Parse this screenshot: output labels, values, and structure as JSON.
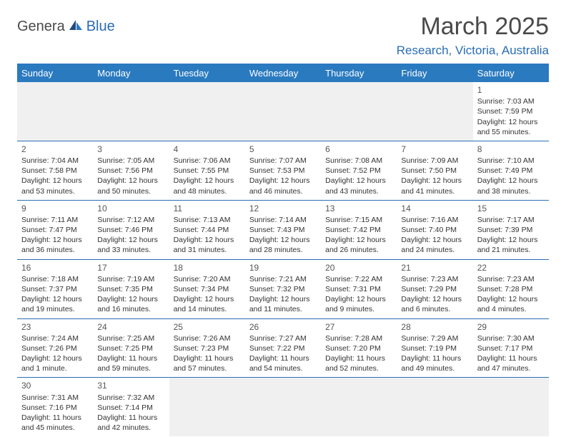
{
  "logo": {
    "text1": "Genera",
    "text2": "Blue"
  },
  "title": "March 2025",
  "location": "Research, Victoria, Australia",
  "colors": {
    "header_bg": "#2a7ac0",
    "header_text": "#ffffff",
    "accent": "#2a6db5",
    "row_border": "#2a6db5",
    "blank_bg": "#f0f0f0",
    "body_text": "#333333",
    "title_text": "#4a4a4a"
  },
  "day_headers": [
    "Sunday",
    "Monday",
    "Tuesday",
    "Wednesday",
    "Thursday",
    "Friday",
    "Saturday"
  ],
  "weeks": [
    [
      {
        "empty": true
      },
      {
        "empty": true
      },
      {
        "empty": true
      },
      {
        "empty": true
      },
      {
        "empty": true
      },
      {
        "empty": true
      },
      {
        "day": "1",
        "sunrise": "Sunrise: 7:03 AM",
        "sunset": "Sunset: 7:59 PM",
        "daylight": "Daylight: 12 hours and 55 minutes."
      }
    ],
    [
      {
        "day": "2",
        "sunrise": "Sunrise: 7:04 AM",
        "sunset": "Sunset: 7:58 PM",
        "daylight": "Daylight: 12 hours and 53 minutes."
      },
      {
        "day": "3",
        "sunrise": "Sunrise: 7:05 AM",
        "sunset": "Sunset: 7:56 PM",
        "daylight": "Daylight: 12 hours and 50 minutes."
      },
      {
        "day": "4",
        "sunrise": "Sunrise: 7:06 AM",
        "sunset": "Sunset: 7:55 PM",
        "daylight": "Daylight: 12 hours and 48 minutes."
      },
      {
        "day": "5",
        "sunrise": "Sunrise: 7:07 AM",
        "sunset": "Sunset: 7:53 PM",
        "daylight": "Daylight: 12 hours and 46 minutes."
      },
      {
        "day": "6",
        "sunrise": "Sunrise: 7:08 AM",
        "sunset": "Sunset: 7:52 PM",
        "daylight": "Daylight: 12 hours and 43 minutes."
      },
      {
        "day": "7",
        "sunrise": "Sunrise: 7:09 AM",
        "sunset": "Sunset: 7:50 PM",
        "daylight": "Daylight: 12 hours and 41 minutes."
      },
      {
        "day": "8",
        "sunrise": "Sunrise: 7:10 AM",
        "sunset": "Sunset: 7:49 PM",
        "daylight": "Daylight: 12 hours and 38 minutes."
      }
    ],
    [
      {
        "day": "9",
        "sunrise": "Sunrise: 7:11 AM",
        "sunset": "Sunset: 7:47 PM",
        "daylight": "Daylight: 12 hours and 36 minutes."
      },
      {
        "day": "10",
        "sunrise": "Sunrise: 7:12 AM",
        "sunset": "Sunset: 7:46 PM",
        "daylight": "Daylight: 12 hours and 33 minutes."
      },
      {
        "day": "11",
        "sunrise": "Sunrise: 7:13 AM",
        "sunset": "Sunset: 7:44 PM",
        "daylight": "Daylight: 12 hours and 31 minutes."
      },
      {
        "day": "12",
        "sunrise": "Sunrise: 7:14 AM",
        "sunset": "Sunset: 7:43 PM",
        "daylight": "Daylight: 12 hours and 28 minutes."
      },
      {
        "day": "13",
        "sunrise": "Sunrise: 7:15 AM",
        "sunset": "Sunset: 7:42 PM",
        "daylight": "Daylight: 12 hours and 26 minutes."
      },
      {
        "day": "14",
        "sunrise": "Sunrise: 7:16 AM",
        "sunset": "Sunset: 7:40 PM",
        "daylight": "Daylight: 12 hours and 24 minutes."
      },
      {
        "day": "15",
        "sunrise": "Sunrise: 7:17 AM",
        "sunset": "Sunset: 7:39 PM",
        "daylight": "Daylight: 12 hours and 21 minutes."
      }
    ],
    [
      {
        "day": "16",
        "sunrise": "Sunrise: 7:18 AM",
        "sunset": "Sunset: 7:37 PM",
        "daylight": "Daylight: 12 hours and 19 minutes."
      },
      {
        "day": "17",
        "sunrise": "Sunrise: 7:19 AM",
        "sunset": "Sunset: 7:35 PM",
        "daylight": "Daylight: 12 hours and 16 minutes."
      },
      {
        "day": "18",
        "sunrise": "Sunrise: 7:20 AM",
        "sunset": "Sunset: 7:34 PM",
        "daylight": "Daylight: 12 hours and 14 minutes."
      },
      {
        "day": "19",
        "sunrise": "Sunrise: 7:21 AM",
        "sunset": "Sunset: 7:32 PM",
        "daylight": "Daylight: 12 hours and 11 minutes."
      },
      {
        "day": "20",
        "sunrise": "Sunrise: 7:22 AM",
        "sunset": "Sunset: 7:31 PM",
        "daylight": "Daylight: 12 hours and 9 minutes."
      },
      {
        "day": "21",
        "sunrise": "Sunrise: 7:23 AM",
        "sunset": "Sunset: 7:29 PM",
        "daylight": "Daylight: 12 hours and 6 minutes."
      },
      {
        "day": "22",
        "sunrise": "Sunrise: 7:23 AM",
        "sunset": "Sunset: 7:28 PM",
        "daylight": "Daylight: 12 hours and 4 minutes."
      }
    ],
    [
      {
        "day": "23",
        "sunrise": "Sunrise: 7:24 AM",
        "sunset": "Sunset: 7:26 PM",
        "daylight": "Daylight: 12 hours and 1 minute."
      },
      {
        "day": "24",
        "sunrise": "Sunrise: 7:25 AM",
        "sunset": "Sunset: 7:25 PM",
        "daylight": "Daylight: 11 hours and 59 minutes."
      },
      {
        "day": "25",
        "sunrise": "Sunrise: 7:26 AM",
        "sunset": "Sunset: 7:23 PM",
        "daylight": "Daylight: 11 hours and 57 minutes."
      },
      {
        "day": "26",
        "sunrise": "Sunrise: 7:27 AM",
        "sunset": "Sunset: 7:22 PM",
        "daylight": "Daylight: 11 hours and 54 minutes."
      },
      {
        "day": "27",
        "sunrise": "Sunrise: 7:28 AM",
        "sunset": "Sunset: 7:20 PM",
        "daylight": "Daylight: 11 hours and 52 minutes."
      },
      {
        "day": "28",
        "sunrise": "Sunrise: 7:29 AM",
        "sunset": "Sunset: 7:19 PM",
        "daylight": "Daylight: 11 hours and 49 minutes."
      },
      {
        "day": "29",
        "sunrise": "Sunrise: 7:30 AM",
        "sunset": "Sunset: 7:17 PM",
        "daylight": "Daylight: 11 hours and 47 minutes."
      }
    ],
    [
      {
        "day": "30",
        "sunrise": "Sunrise: 7:31 AM",
        "sunset": "Sunset: 7:16 PM",
        "daylight": "Daylight: 11 hours and 45 minutes."
      },
      {
        "day": "31",
        "sunrise": "Sunrise: 7:32 AM",
        "sunset": "Sunset: 7:14 PM",
        "daylight": "Daylight: 11 hours and 42 minutes."
      },
      {
        "empty": true
      },
      {
        "empty": true
      },
      {
        "empty": true
      },
      {
        "empty": true
      },
      {
        "empty": true
      }
    ]
  ]
}
